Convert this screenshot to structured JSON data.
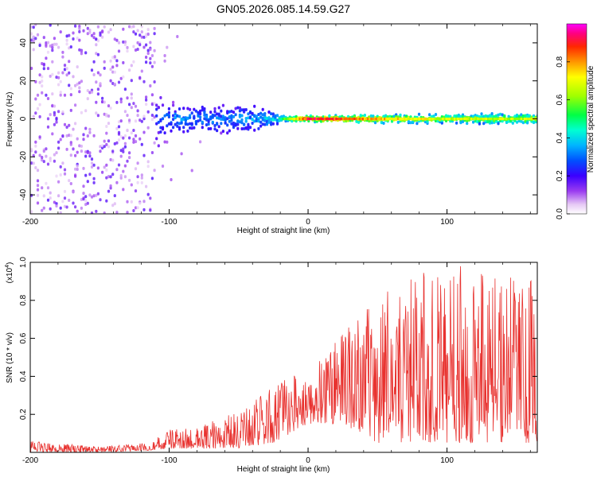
{
  "figure": {
    "title": "GN05.2026.085.14.59.G27"
  },
  "chart_data": [
    {
      "type": "heatmap",
      "title": "GN05.2026.085.14.59.G27",
      "xlabel": "Height of straight line (km)",
      "ylabel": "Frequency (Hz)",
      "xlim": [
        -200,
        165
      ],
      "ylim": [
        -50,
        50
      ],
      "xticks": [
        -200,
        -100,
        0,
        100
      ],
      "xtick_labels": [
        "-200",
        "-100",
        "0",
        "100"
      ],
      "yticks": [
        -40,
        -20,
        0,
        20,
        40
      ],
      "ytick_labels": [
        "-40",
        "-20",
        "0",
        "20",
        "40"
      ],
      "colorbar": {
        "label": "Normalized spectral amplitude",
        "range": [
          0,
          1
        ],
        "ticks": [
          0.0,
          0.2,
          0.4,
          0.6,
          0.8
        ],
        "tick_labels": [
          "0.0",
          "0.2",
          "0.4",
          "0.6",
          "0.8"
        ],
        "colormap": [
          "#ffffff",
          "#e6c8f5",
          "#9a3cf0",
          "#3a00ff",
          "#0050ff",
          "#00b4ff",
          "#00ffd2",
          "#00ff46",
          "#a0ff00",
          "#ffff00",
          "#ff9600",
          "#ff2800",
          "#ff0080",
          "#ff00ff"
        ]
      },
      "description_points": [
        {
          "x": -200,
          "spread_hz": 50,
          "peak_amplitude": 0.25
        },
        {
          "x": -150,
          "spread_hz": 50,
          "peak_amplitude": 0.2
        },
        {
          "x": -115,
          "spread_hz": 25,
          "peak_amplitude": 0.25
        },
        {
          "x": -100,
          "spread_hz": 8,
          "peak_amplitude": 0.4
        },
        {
          "x": -60,
          "spread_hz": 8,
          "peak_amplitude": 0.4
        },
        {
          "x": -30,
          "spread_hz": 6,
          "peak_amplitude": 0.45
        },
        {
          "x": -20,
          "spread_hz": 2,
          "peak_amplitude": 0.55
        },
        {
          "x": 0,
          "spread_hz": 1.5,
          "peak_amplitude": 0.95
        },
        {
          "x": 50,
          "spread_hz": 2,
          "peak_amplitude": 0.8
        },
        {
          "x": 100,
          "spread_hz": 2.5,
          "peak_amplitude": 0.7
        },
        {
          "x": 165,
          "spread_hz": 3,
          "peak_amplitude": 0.7
        }
      ]
    },
    {
      "type": "line",
      "title": "",
      "xlabel": "Height of straight line (km)",
      "ylabel": "SNR (10 * v/v)",
      "yscale_label": "(x10",
      "yscale_exponent": "4",
      "xlim": [
        -200,
        165
      ],
      "ylim": [
        0,
        1.0
      ],
      "xticks": [
        -200,
        -100,
        0,
        100
      ],
      "xtick_labels": [
        "-200",
        "-100",
        "0",
        "100"
      ],
      "yticks": [
        0.2,
        0.4,
        0.6,
        0.8,
        1.0
      ],
      "ytick_labels": [
        "0.2",
        "0.4",
        "0.6",
        "0.8",
        "1.0"
      ],
      "series": [
        {
          "name": "SNR",
          "color": "#e8322f",
          "envelope": [
            {
              "x": -200,
              "low": 0.0,
              "high": 0.06
            },
            {
              "x": -150,
              "low": 0.0,
              "high": 0.03
            },
            {
              "x": -115,
              "low": 0.01,
              "high": 0.05
            },
            {
              "x": -100,
              "low": 0.02,
              "high": 0.12
            },
            {
              "x": -80,
              "low": 0.02,
              "high": 0.13
            },
            {
              "x": -50,
              "low": 0.02,
              "high": 0.22
            },
            {
              "x": -25,
              "low": 0.05,
              "high": 0.35
            },
            {
              "x": 0,
              "low": 0.15,
              "high": 0.45
            },
            {
              "x": 25,
              "low": 0.15,
              "high": 0.62
            },
            {
              "x": 50,
              "low": 0.05,
              "high": 0.85
            },
            {
              "x": 100,
              "low": 0.05,
              "high": 1.0
            },
            {
              "x": 165,
              "low": 0.05,
              "high": 0.9
            }
          ]
        }
      ]
    }
  ]
}
